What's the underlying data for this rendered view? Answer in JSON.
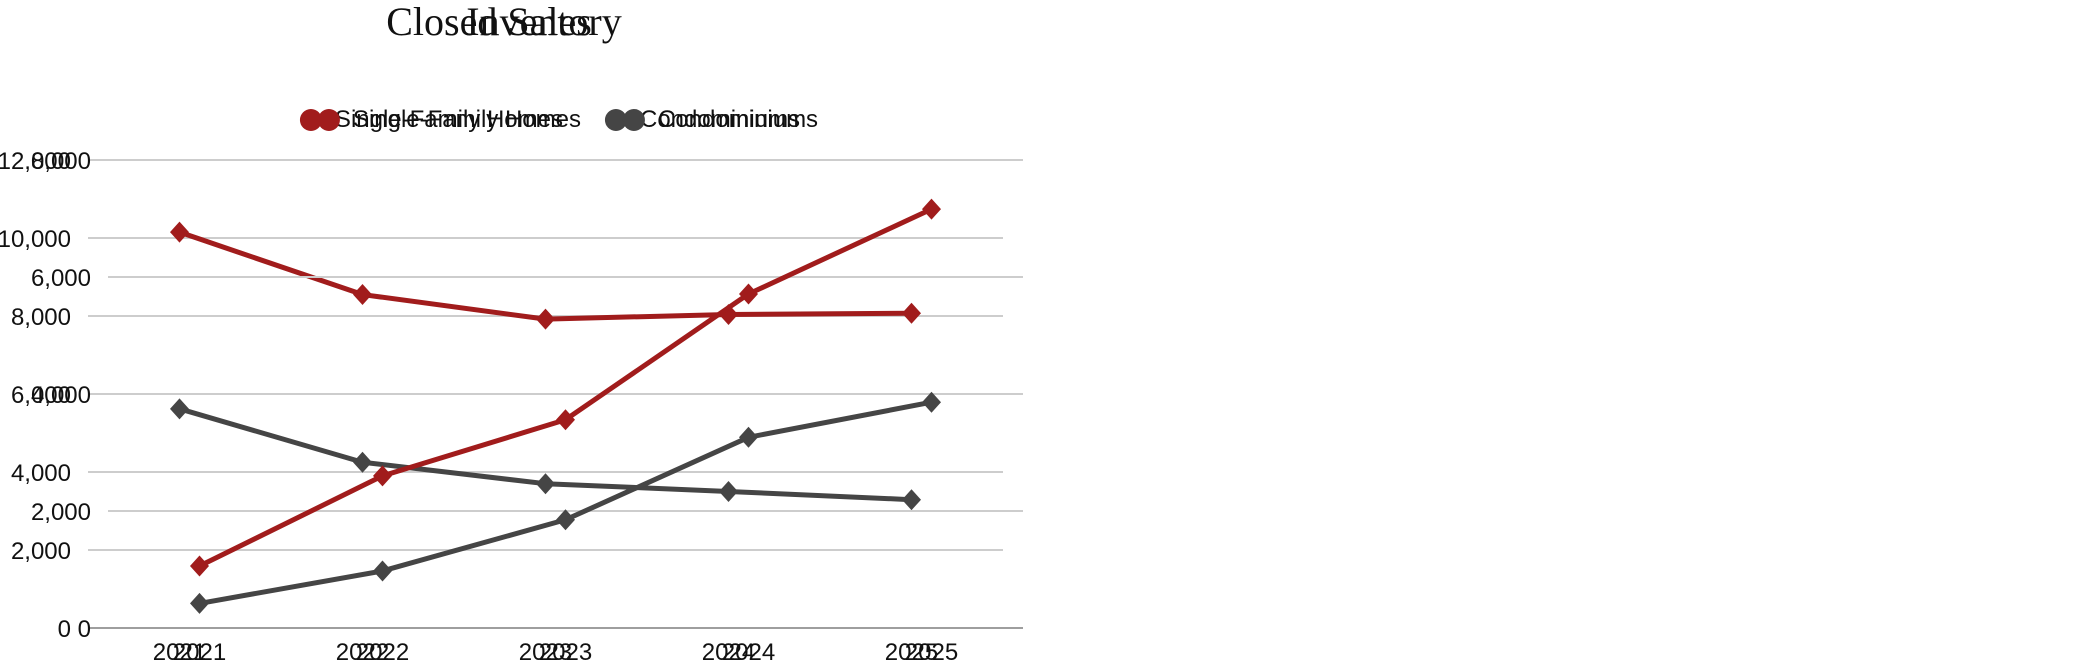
{
  "page": {
    "background": "#ffffff",
    "text_color": "#111111",
    "gridline_color": "#cdcdcd",
    "baseline_color": "#9e9e9e"
  },
  "chart_data": [
    {
      "id": "closed-sales",
      "type": "line",
      "title": "Closed Sales",
      "categories": [
        "2021",
        "2022",
        "2023",
        "2024",
        "2025"
      ],
      "series": [
        {
          "name": "Single-Family Homes",
          "color": "#A11C1C",
          "marker": "diamond",
          "values": [
            10150,
            8550,
            7920,
            8040,
            8070
          ]
        },
        {
          "name": "Condominiums",
          "color": "#454545",
          "marker": "diamond",
          "values": [
            5620,
            4250,
            3700,
            3500,
            3290
          ]
        }
      ],
      "xlabel": "",
      "ylabel": "",
      "ylim": [
        0,
        12000
      ],
      "ytick_step": 2000,
      "ytick_labels": [
        "0",
        "2,000",
        "4,000",
        "6,000",
        "8,000",
        "10,000",
        "12,000"
      ],
      "grid": true,
      "legend_position": "top",
      "legend_marker": "circle"
    },
    {
      "id": "inventory",
      "type": "line",
      "title": "Inventory",
      "categories": [
        "2021",
        "2022",
        "2023",
        "2024",
        "2025"
      ],
      "series": [
        {
          "name": "Single-Family Homes",
          "color": "#A11C1C",
          "marker": "diamond",
          "values": [
            1060,
            2600,
            3560,
            5710,
            7160
          ]
        },
        {
          "name": "Condominiums",
          "color": "#454545",
          "marker": "diamond",
          "values": [
            420,
            975,
            1850,
            3260,
            3860
          ]
        }
      ],
      "xlabel": "",
      "ylabel": "",
      "ylim": [
        0,
        8000
      ],
      "ytick_step": 2000,
      "ytick_labels": [
        "0",
        "2,000",
        "4,000",
        "6,000",
        "8,000"
      ],
      "grid": true,
      "legend_position": "top",
      "legend_marker": "circle"
    }
  ]
}
